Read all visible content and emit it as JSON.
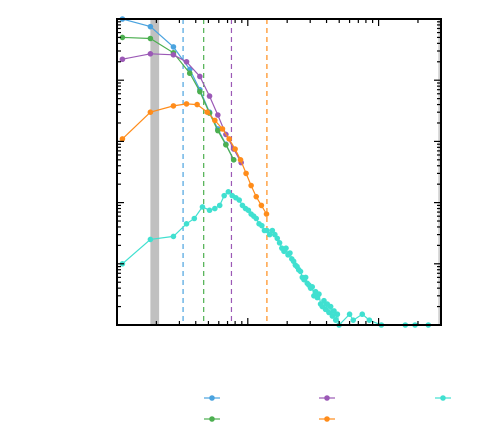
{
  "chart_data": {
    "type": "line",
    "title": "",
    "xlabel": "",
    "ylabel": "",
    "x_scale": "log",
    "y_scale": "log",
    "xlim": [
      1,
      300
    ],
    "ylim": [
      0.0001,
      10
    ],
    "grid": false,
    "legend": {
      "position": "bottom",
      "columns": 3,
      "entries": [
        {
          "color": "#4aa3df"
        },
        {
          "color": "#9b59b6"
        },
        {
          "color": "#40e0d0"
        },
        {
          "color": "#4caf50"
        },
        {
          "color": "#ff8c1a"
        }
      ]
    },
    "shaded_band": {
      "x": [
        1.8,
        2.1
      ],
      "color": "#c0c0c0"
    },
    "vlines": [
      {
        "x": 3.2,
        "color": "#4aa3df",
        "style": "dashed"
      },
      {
        "x": 4.6,
        "color": "#4caf50",
        "style": "dashed"
      },
      {
        "x": 7.5,
        "color": "#9b59b6",
        "style": "dashed"
      },
      {
        "x": 14,
        "color": "#ff8c1a",
        "style": "dashed"
      },
      {
        "x": 290,
        "color": "#bbbbbb",
        "style": "solid"
      }
    ],
    "series": [
      {
        "color": "#4aa3df",
        "x": [
          1.1,
          1.8,
          2.7,
          3.6,
          4.3,
          5.1,
          5.9,
          6.8,
          7.8
        ],
        "y": [
          10,
          7.5,
          3.5,
          1.5,
          0.7,
          0.3,
          0.16,
          0.09,
          0.05
        ]
      },
      {
        "color": "#4caf50",
        "x": [
          1.1,
          1.8,
          2.7,
          3.6,
          4.3,
          5.1,
          5.9,
          6.8,
          7.8
        ],
        "y": [
          5,
          4.8,
          2.8,
          1.3,
          0.65,
          0.29,
          0.15,
          0.088,
          0.05
        ]
      },
      {
        "color": "#9b59b6",
        "x": [
          1.1,
          1.8,
          2.7,
          3.4,
          4.3,
          5.1,
          5.9,
          6.8,
          7.8,
          8.9
        ],
        "y": [
          2.2,
          2.7,
          2.6,
          2.0,
          1.15,
          0.55,
          0.27,
          0.13,
          0.075,
          0.045
        ]
      },
      {
        "color": "#ff8c1a",
        "x": [
          1.1,
          1.8,
          2.7,
          3.4,
          4.1,
          4.9,
          5.6,
          6.4,
          7.2,
          8.0,
          8.8,
          9.7,
          10.6,
          11.6,
          12.7,
          13.9
        ],
        "y": [
          0.11,
          0.3,
          0.38,
          0.41,
          0.4,
          0.3,
          0.22,
          0.16,
          0.11,
          0.075,
          0.05,
          0.03,
          0.019,
          0.0125,
          0.009,
          0.0065
        ]
      },
      {
        "color": "#40e0d0",
        "x": [
          1.1,
          1.8,
          2.7,
          3.4,
          3.9,
          4.5,
          5.1,
          5.6,
          6.1,
          6.6,
          7.1,
          7.6,
          8.1,
          8.6,
          9.1,
          9.6,
          10.1,
          10.6,
          11.1,
          11.6,
          12.2,
          12.8,
          13.4,
          14.0,
          14.7,
          15.4,
          16.1,
          16.8,
          17.5,
          18.2,
          18.9,
          19.6,
          20.3,
          21.0,
          21.7,
          22.4,
          23.1,
          23.8,
          24.5,
          25.3,
          26.1,
          26.9,
          27.7,
          28.5,
          29.3,
          30.2,
          31.1,
          32.0,
          33.0,
          34.0,
          35.0,
          36.0,
          37.1,
          38.2,
          39.3,
          40.5,
          41.7,
          43.0,
          44.3,
          45.6,
          47.0,
          48.4,
          49.9,
          60,
          64,
          75,
          85,
          105,
          160,
          190,
          240
        ],
        "y": [
          0.001,
          0.0025,
          0.0028,
          0.0045,
          0.0055,
          0.0085,
          0.0075,
          0.008,
          0.009,
          0.013,
          0.015,
          0.013,
          0.012,
          0.011,
          0.009,
          0.008,
          0.0075,
          0.0065,
          0.006,
          0.0055,
          0.0045,
          0.0042,
          0.0035,
          0.0035,
          0.003,
          0.0035,
          0.003,
          0.0026,
          0.0022,
          0.0018,
          0.0016,
          0.0018,
          0.0014,
          0.0015,
          0.0012,
          0.0011,
          0.00095,
          0.0009,
          0.0008,
          0.00075,
          0.0006,
          0.00055,
          0.0006,
          0.00048,
          0.00045,
          0.0004,
          0.00042,
          0.0003,
          0.00035,
          0.00028,
          0.00032,
          0.00022,
          0.0002,
          0.00025,
          0.00018,
          0.00022,
          0.00016,
          0.0002,
          0.00014,
          0.00017,
          0.00012,
          0.00015,
          0.0001,
          0.00015,
          0.00012,
          0.00015,
          0.00012,
          0.0001,
          0.0001,
          0.0001,
          0.0001
        ]
      }
    ]
  }
}
